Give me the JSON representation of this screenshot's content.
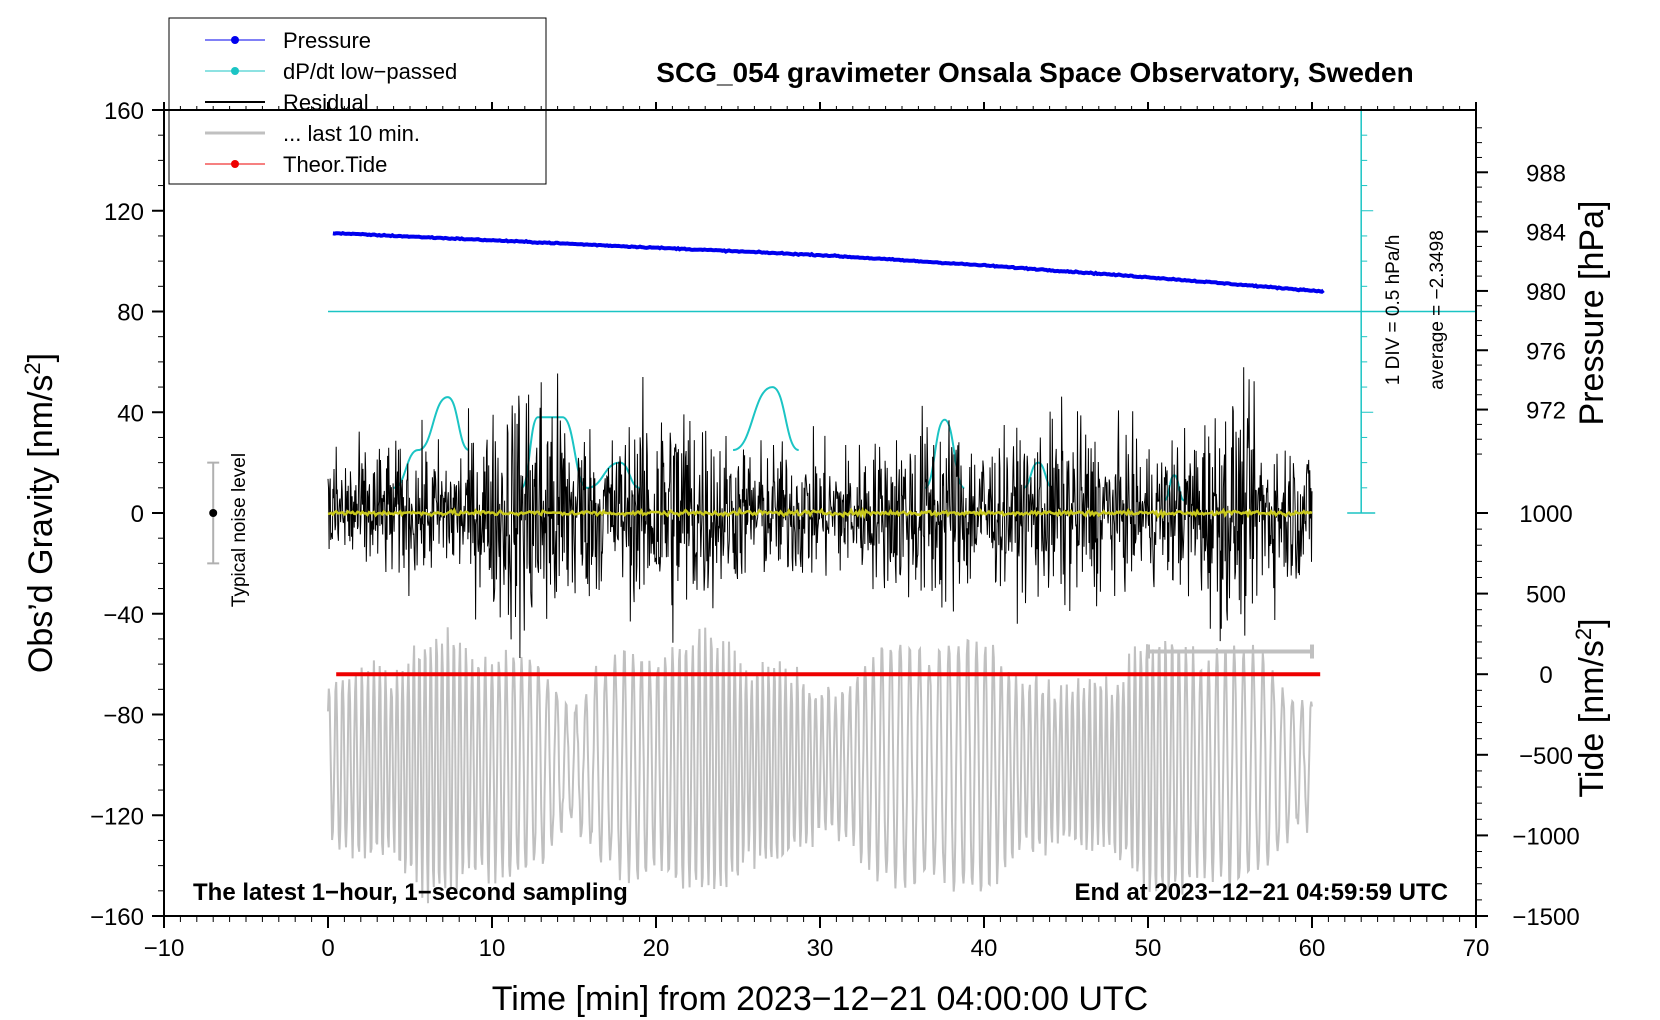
{
  "chart_data": {
    "type": "line",
    "title": "SCG_054 gravimeter Onsala Space Observatory, Sweden",
    "xlabel": "Time [min] from 2023−12−21 04:00:00 UTC",
    "ylabel": "Obs’d Gravity [nm/s²]",
    "ylabel_main": "Obs’d Gravity [nm/s",
    "ylabel_sup": "2",
    "ylabel_end": "]",
    "xlim": [
      -10,
      70
    ],
    "ylim": [
      -160,
      160
    ],
    "xticks": [
      -10,
      0,
      10,
      20,
      30,
      40,
      50,
      60,
      70
    ],
    "xtick_labels": [
      "−10",
      "0",
      "10",
      "20",
      "30",
      "40",
      "50",
      "60",
      "70"
    ],
    "yticks": [
      -160,
      -120,
      -80,
      -40,
      0,
      40,
      80,
      120,
      160
    ],
    "ytick_labels": [
      "−160",
      "−120",
      "−80",
      "−40",
      "0",
      "40",
      "80",
      "120",
      "160"
    ],
    "pressure_axis": {
      "label": "Pressure [hPa]",
      "ticks": [
        972,
        976,
        980,
        984,
        988
      ],
      "tick_labels": [
        "972",
        "976",
        "980",
        "984",
        "988"
      ],
      "range": [
        967.2,
        992.2
      ]
    },
    "tide_axis": {
      "label_main": "Tide [nm/s",
      "label_sup": "2",
      "label_end": "]",
      "ticks": [
        -1500,
        -1000,
        -500,
        0,
        500,
        1000
      ],
      "tick_labels": [
        "−1500",
        "−1000",
        "−500",
        "0",
        "500",
        "1000"
      ],
      "range": [
        -1500,
        1000
      ]
    },
    "series": [
      {
        "name": "Pressure",
        "color": "#0000ee",
        "x": [
          0,
          10,
          20,
          30,
          40,
          50,
          60
        ],
        "values": [
          983.9,
          983.4,
          982.9,
          982.4,
          981.7,
          980.9,
          980.0
        ],
        "units": "hPa"
      },
      {
        "name": "dP/dt low−passed",
        "color": "#1bc4c4",
        "x": [
          4,
          5.5,
          7.3,
          8.6,
          11.8,
          12.8,
          14.3,
          15.8,
          17.8,
          19,
          24.7,
          27.1,
          28.7,
          36.4,
          37.6,
          38.8,
          42.4,
          43.3,
          44.2,
          51,
          51.6,
          52.2
        ],
        "values": [
          10,
          25,
          46,
          25,
          10,
          38,
          38,
          10,
          20,
          10,
          25,
          50,
          25,
          10,
          37,
          10,
          10,
          20,
          10,
          5,
          15,
          5
        ]
      },
      {
        "name": "Residual",
        "color": "#000000",
        "x_range": [
          0,
          60
        ],
        "amplitude_nm_s2": 40
      },
      {
        "name": "... last 10 min.",
        "color": "#c0c0c0",
        "x_range": [
          50,
          60
        ]
      },
      {
        "name": "Theor.Tide",
        "color": "#ee0000",
        "x": [
          0.5,
          60.5
        ],
        "values": [
          0,
          0
        ],
        "units": "nm/s²"
      }
    ],
    "dpdt_scale": {
      "label": "1 DIV = 0.5 hPa/h",
      "average": "average = −2.3498",
      "baseline": 80
    },
    "noise_bar": {
      "label": "Typical noise level",
      "center": 0,
      "half_range": 20,
      "x": -7
    },
    "last10_bar": {
      "x": [
        50,
        60
      ],
      "y": -55
    },
    "mean_line": {
      "color": "#c8c81e"
    },
    "annotations": {
      "left": "The latest 1−hour, 1−second sampling",
      "right": "End at 2023−12−21 04:59:59 UTC"
    },
    "legend_position": "top-left, outside plot"
  }
}
